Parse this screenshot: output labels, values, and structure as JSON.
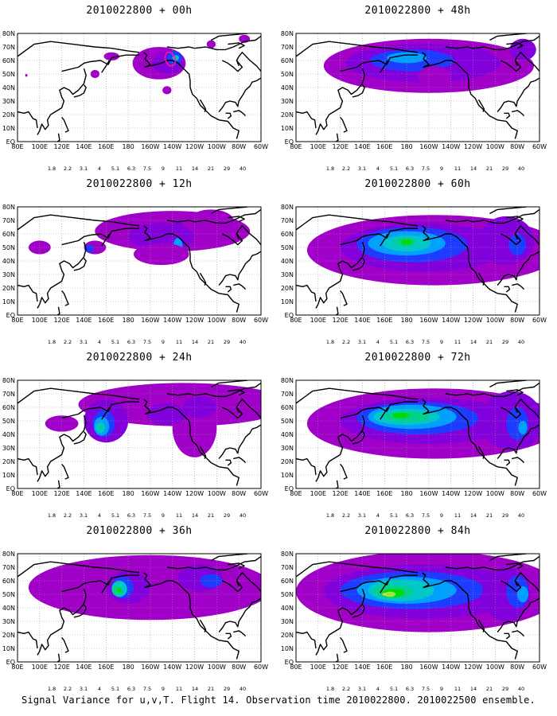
{
  "panels": [
    {
      "title": "2010022800 + 00h",
      "lead": "00h"
    },
    {
      "title": "2010022800 + 48h",
      "lead": "48h"
    },
    {
      "title": "2010022800 + 12h",
      "lead": "12h"
    },
    {
      "title": "2010022800 + 60h",
      "lead": "60h"
    },
    {
      "title": "2010022800 + 24h",
      "lead": "24h"
    },
    {
      "title": "2010022800 + 72h",
      "lead": "72h"
    },
    {
      "title": "2010022800 + 36h",
      "lead": "36h"
    },
    {
      "title": "2010022800 + 84h",
      "lead": "84h"
    }
  ],
  "lat_labels": [
    "80N",
    "70N",
    "60N",
    "50N",
    "40N",
    "30N",
    "20N",
    "10N",
    "EQ"
  ],
  "lon_labels": [
    "80E",
    "100E",
    "120E",
    "140E",
    "160E",
    "180",
    "160W",
    "140W",
    "120W",
    "100W",
    "80W",
    "60W"
  ],
  "legend": {
    "levels": [
      "1.8",
      "2.2",
      "3.1",
      "4",
      "5.1",
      "6.3",
      "7.5",
      "9",
      "11",
      "14",
      "21",
      "29",
      "40"
    ],
    "colors": [
      "#a000c8",
      "#8200dc",
      "#1e3cff",
      "#00a0ff",
      "#00c8c8",
      "#00d28c",
      "#00dc00",
      "#a0e632",
      "#e6dc32",
      "#e6af2d",
      "#f08228",
      "#fa3c3c",
      "#f00082"
    ]
  },
  "caption": "Signal Variance for u,v,T. Flight 14. Observation time 2010022800. 2010022500 ensemble."
}
